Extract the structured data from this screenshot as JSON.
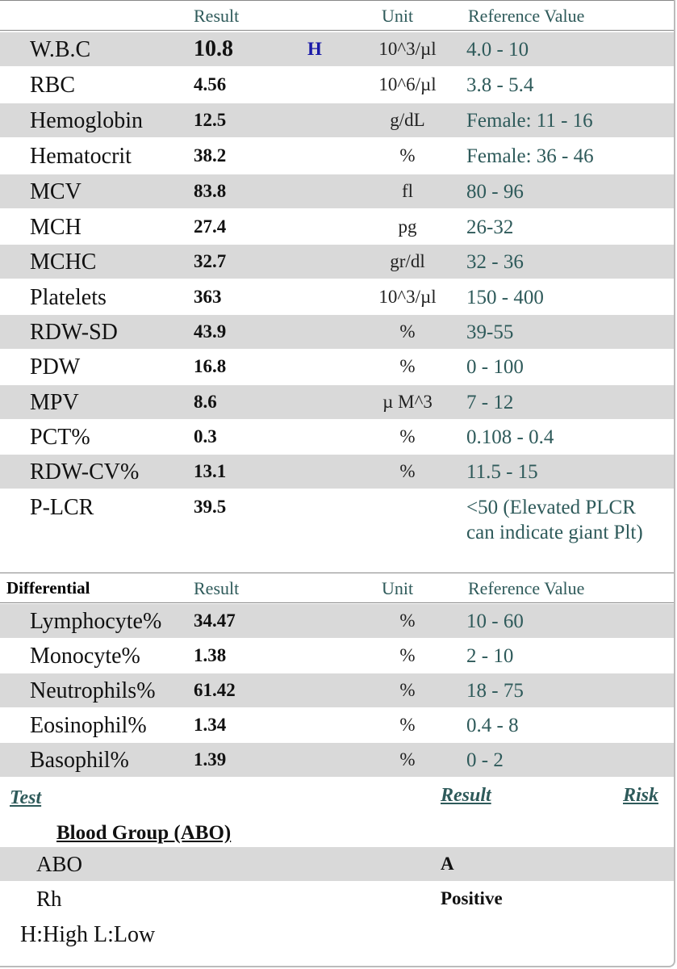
{
  "cbc_header": {
    "result": "Result",
    "unit": "Unit",
    "reference": "Reference Value"
  },
  "cbc_rows": [
    {
      "name": "W.B.C",
      "result": "10.8",
      "flag": "H",
      "unit": "10^3/µl",
      "reference": "4.0 - 10"
    },
    {
      "name": "RBC",
      "result": "4.56",
      "flag": "",
      "unit": "10^6/µl",
      "reference": "3.8 - 5.4"
    },
    {
      "name": "Hemoglobin",
      "result": "12.5",
      "flag": "",
      "unit": "g/dL",
      "reference": "Female: 11 - 16"
    },
    {
      "name": "Hematocrit",
      "result": "38.2",
      "flag": "",
      "unit": "%",
      "reference": "Female: 36 - 46"
    },
    {
      "name": "MCV",
      "result": "83.8",
      "flag": "",
      "unit": "fl",
      "reference": "80 - 96"
    },
    {
      "name": "MCH",
      "result": "27.4",
      "flag": "",
      "unit": "pg",
      "reference": "26-32"
    },
    {
      "name": "MCHC",
      "result": "32.7",
      "flag": "",
      "unit": "gr/dl",
      "reference": "32 - 36"
    },
    {
      "name": "Platelets",
      "result": "363",
      "flag": "",
      "unit": "10^3/µl",
      "reference": "150 - 400"
    },
    {
      "name": "RDW-SD",
      "result": "43.9",
      "flag": "",
      "unit": "%",
      "reference": "39-55"
    },
    {
      "name": "PDW",
      "result": "16.8",
      "flag": "",
      "unit": "%",
      "reference": "0 - 100"
    },
    {
      "name": "MPV",
      "result": "8.6",
      "flag": "",
      "unit": "µ M^3",
      "reference": "7 - 12"
    },
    {
      "name": "PCT%",
      "result": "0.3",
      "flag": "",
      "unit": "%",
      "reference": "0.108 - 0.4"
    },
    {
      "name": "RDW-CV%",
      "result": "13.1",
      "flag": "",
      "unit": "%",
      "reference": "11.5 - 15"
    },
    {
      "name": "P-LCR",
      "result": "39.5",
      "flag": "",
      "unit": "",
      "reference": "<50 (Elevated PLCR can indicate giant Plt)"
    }
  ],
  "diff_header": {
    "title": "Differential",
    "result": "Result",
    "unit": "Unit",
    "reference": "Reference Value"
  },
  "diff_rows": [
    {
      "name": "Lymphocyte%",
      "result": "34.47",
      "unit": "%",
      "reference": "10 - 60"
    },
    {
      "name": "Monocyte%",
      "result": "1.38",
      "unit": "%",
      "reference": "2 - 10"
    },
    {
      "name": "Neutrophils%",
      "result": "61.42",
      "unit": "%",
      "reference": "18 - 75"
    },
    {
      "name": "Eosinophil%",
      "result": "1.34",
      "unit": "%",
      "reference": "0.4 - 8"
    },
    {
      "name": "Basophil%",
      "result": "1.39",
      "unit": "%",
      "reference": "0 - 2"
    }
  ],
  "blood": {
    "test_link": "Test",
    "result_link": "Result",
    "risk_link": "Risk",
    "group_title": "Blood Group (ABO)",
    "rows": [
      {
        "name": "ABO",
        "result": "A"
      },
      {
        "name": "Rh",
        "result": "Positive"
      }
    ]
  },
  "legend": "H:High L:Low"
}
